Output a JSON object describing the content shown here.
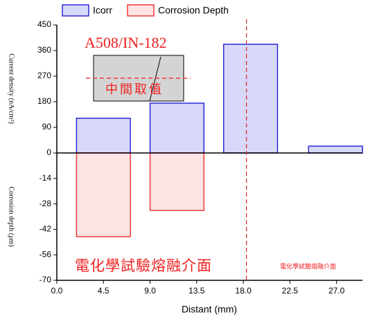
{
  "chart_data": {
    "type": "bar",
    "x": [
      4.5,
      11.6,
      18.7,
      26.9
    ],
    "bar_width": 5.2,
    "series": [
      {
        "name": "Icorr",
        "color": "#2a2ad8",
        "fill": "#d8d8f8",
        "values": [
          122,
          175,
          382,
          24
        ]
      },
      {
        "name": "Corrosion Depth",
        "color": "#f03a3a",
        "fill": "#fde4e4",
        "values": [
          -46,
          -31.6,
          null,
          null
        ],
        "axis": "y2"
      }
    ],
    "xlim": [
      0,
      29.5
    ],
    "xticks": [
      {
        "value": 0,
        "label": "0.0"
      },
      4.5,
      {
        "value": 9,
        "label": "9.0"
      },
      13.5,
      {
        "value": 18,
        "label": "18.0"
      },
      22.5,
      {
        "value": 27,
        "label": "27.0"
      }
    ],
    "ylim": [
      0,
      450
    ],
    "yticks": [
      0,
      90,
      180,
      270,
      360,
      450
    ],
    "y2lim": [
      -70,
      0
    ],
    "y2ticks": [
      -14,
      -28,
      -42,
      -56,
      -70
    ],
    "xlabel": "Distant (mm)",
    "ylabel": "Current density (nA/cm²)",
    "y2label": "Corrosion depth (μm)",
    "reference_line_x": 18.3,
    "annotations": [
      "A508/IN-182",
      "中間取值",
      "電化學試驗熔融介面",
      "電化學試驗熔融介面"
    ]
  }
}
